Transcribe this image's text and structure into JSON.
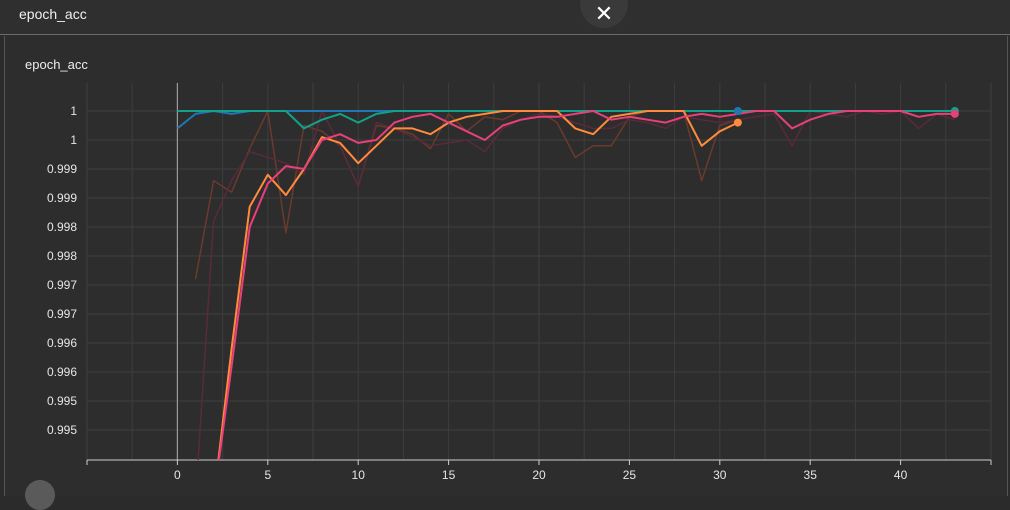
{
  "header": {
    "title": "epoch_acc",
    "close_icon": "close-icon"
  },
  "panel": {
    "title": "epoch_acc"
  },
  "colors": {
    "grid": "#3e3e3e",
    "axis": "#d0d0d0",
    "tick_text": "#e6e6e6"
  },
  "chart_data": {
    "type": "line",
    "title": "epoch_acc",
    "xlabel": "",
    "ylabel": "",
    "xlim": [
      -5,
      45
    ],
    "ylim": [
      0.9944,
      0.99995
    ],
    "grid": true,
    "x_ticks": [
      0,
      5,
      10,
      15,
      20,
      25,
      30,
      35,
      40
    ],
    "y_ticks": [
      {
        "value": 0.9999,
        "label": "1"
      },
      {
        "value": 0.9994,
        "label": "1"
      },
      {
        "value": 0.9989,
        "label": "0.999"
      },
      {
        "value": 0.9984,
        "label": "0.999"
      },
      {
        "value": 0.9979,
        "label": "0.998"
      },
      {
        "value": 0.9974,
        "label": "0.998"
      },
      {
        "value": 0.9969,
        "label": "0.997"
      },
      {
        "value": 0.9964,
        "label": "0.997"
      },
      {
        "value": 0.9959,
        "label": "0.996"
      },
      {
        "value": 0.9954,
        "label": "0.996"
      },
      {
        "value": 0.9949,
        "label": "0.995"
      },
      {
        "value": 0.9944,
        "label": "0.995"
      }
    ],
    "raw_series": [
      {
        "color": "#6a3a2d",
        "x": [
          1,
          2,
          3,
          4,
          5,
          6,
          7,
          8,
          9,
          10,
          11,
          12,
          13,
          14,
          15,
          16,
          17,
          18,
          19,
          20,
          21,
          22,
          23,
          24,
          25,
          26,
          27,
          28,
          29,
          30,
          31
        ],
        "y": [
          0.997,
          0.9987,
          0.9985,
          0.99925,
          0.9999,
          0.9978,
          0.99965,
          0.99955,
          0.9993,
          0.9986,
          0.99965,
          0.9996,
          0.9995,
          0.99925,
          0.99985,
          0.99955,
          0.9998,
          0.99975,
          0.9999,
          0.9999,
          0.9997,
          0.9991,
          0.9993,
          0.9993,
          0.9998,
          0.9999,
          0.9999,
          0.9999,
          0.9987,
          0.99965,
          0.99975
        ]
      },
      {
        "color": "#5a2a3a",
        "x": [
          1,
          2,
          3,
          4,
          5,
          6,
          7,
          8,
          9,
          10,
          11,
          12,
          13,
          14,
          15,
          16,
          17,
          18,
          19,
          20,
          21,
          22,
          23,
          24,
          25,
          26,
          27,
          28,
          29,
          30,
          31,
          32,
          33,
          34,
          35,
          36,
          37,
          38,
          39,
          40,
          41,
          42,
          43
        ],
        "y": [
          0.993,
          0.998,
          0.9987,
          0.9992,
          0.9991,
          0.999,
          0.9988,
          0.9999,
          0.9993,
          0.9986,
          0.9997,
          0.9996,
          0.99945,
          0.9993,
          0.99935,
          0.9994,
          0.9992,
          0.9996,
          0.99975,
          0.99985,
          0.9998,
          0.9997,
          0.9996,
          0.9996,
          0.99975,
          0.9997,
          0.9996,
          0.9998,
          0.99975,
          0.9997,
          0.99975,
          0.9998,
          0.99985,
          0.9993,
          0.9999,
          0.99985,
          0.9998,
          0.9999,
          0.99985,
          0.9999,
          0.9996,
          0.99985,
          0.99975
        ]
      }
    ],
    "series": [
      {
        "color": "#1f77b4",
        "x": [
          0,
          1,
          2,
          3,
          4,
          5,
          6,
          7,
          8,
          9,
          10,
          11,
          12,
          13,
          14,
          15,
          16,
          17,
          18,
          19,
          20,
          21,
          22,
          23,
          24,
          25,
          26,
          27,
          28,
          29,
          30,
          31
        ],
        "y": [
          0.9996,
          0.99985,
          0.9999,
          0.99985,
          0.9999,
          0.9999,
          0.9999,
          0.9999,
          0.9999,
          0.9999,
          0.9999,
          0.9999,
          0.9999,
          0.9999,
          0.9999,
          0.9999,
          0.9999,
          0.9999,
          0.9999,
          0.9999,
          0.9999,
          0.9999,
          0.9999,
          0.9999,
          0.9999,
          0.9999,
          0.9999,
          0.9999,
          0.9999,
          0.9999,
          0.9999,
          0.9999
        ]
      },
      {
        "color": "#11a38a",
        "x": [
          0,
          1,
          2,
          3,
          4,
          5,
          6,
          7,
          8,
          9,
          10,
          11,
          12,
          13,
          14,
          15,
          16,
          17,
          18,
          19,
          20,
          21,
          22,
          23,
          24,
          25,
          26,
          27,
          28,
          29,
          30,
          31,
          32,
          33,
          34,
          35,
          36,
          37,
          38,
          39,
          40,
          41,
          42,
          43
        ],
        "y": [
          0.9999,
          0.9999,
          0.9999,
          0.9999,
          0.9999,
          0.9999,
          0.9999,
          0.9996,
          0.99975,
          0.99985,
          0.9997,
          0.99985,
          0.9999,
          0.9999,
          0.9999,
          0.9999,
          0.9999,
          0.9999,
          0.9999,
          0.9999,
          0.9999,
          0.9999,
          0.9999,
          0.9999,
          0.9999,
          0.9999,
          0.9999,
          0.9999,
          0.9999,
          0.9999,
          0.9999,
          0.9999,
          0.9999,
          0.9999,
          0.9999,
          0.9999,
          0.9999,
          0.9999,
          0.9999,
          0.9999,
          0.9999,
          0.9999,
          0.9999,
          0.9999
        ]
      },
      {
        "color": "#ff8b3d",
        "x": [
          2,
          3,
          4,
          5,
          6,
          7,
          8,
          9,
          10,
          11,
          12,
          13,
          14,
          15,
          16,
          17,
          18,
          19,
          20,
          21,
          22,
          23,
          24,
          25,
          26,
          27,
          28,
          29,
          30,
          31
        ],
        "y": [
          0.992,
          0.9958,
          0.99825,
          0.9988,
          0.99845,
          0.9989,
          0.99945,
          0.99935,
          0.999,
          0.9993,
          0.9996,
          0.9996,
          0.9995,
          0.9997,
          0.9998,
          0.99985,
          0.9999,
          0.9999,
          0.9999,
          0.9999,
          0.9996,
          0.9995,
          0.9998,
          0.99985,
          0.9999,
          0.9999,
          0.9999,
          0.9993,
          0.99955,
          0.9997
        ]
      },
      {
        "color": "#e8407a",
        "x": [
          2,
          3,
          4,
          5,
          6,
          7,
          8,
          9,
          10,
          11,
          12,
          13,
          14,
          15,
          16,
          17,
          18,
          19,
          20,
          21,
          22,
          23,
          24,
          25,
          26,
          27,
          28,
          29,
          30,
          31,
          32,
          33,
          34,
          35,
          36,
          37,
          38,
          39,
          40,
          41,
          42,
          43
        ],
        "y": [
          0.992,
          0.9955,
          0.9979,
          0.99865,
          0.99895,
          0.9989,
          0.9994,
          0.9995,
          0.99935,
          0.9994,
          0.9997,
          0.9998,
          0.99985,
          0.9997,
          0.99955,
          0.9994,
          0.99965,
          0.99975,
          0.9998,
          0.9998,
          0.99985,
          0.9999,
          0.99975,
          0.9998,
          0.99975,
          0.9997,
          0.9998,
          0.99985,
          0.9998,
          0.99985,
          0.9999,
          0.9999,
          0.9996,
          0.99975,
          0.99985,
          0.9999,
          0.9999,
          0.9999,
          0.9999,
          0.9998,
          0.99985,
          0.99985
        ]
      }
    ]
  }
}
